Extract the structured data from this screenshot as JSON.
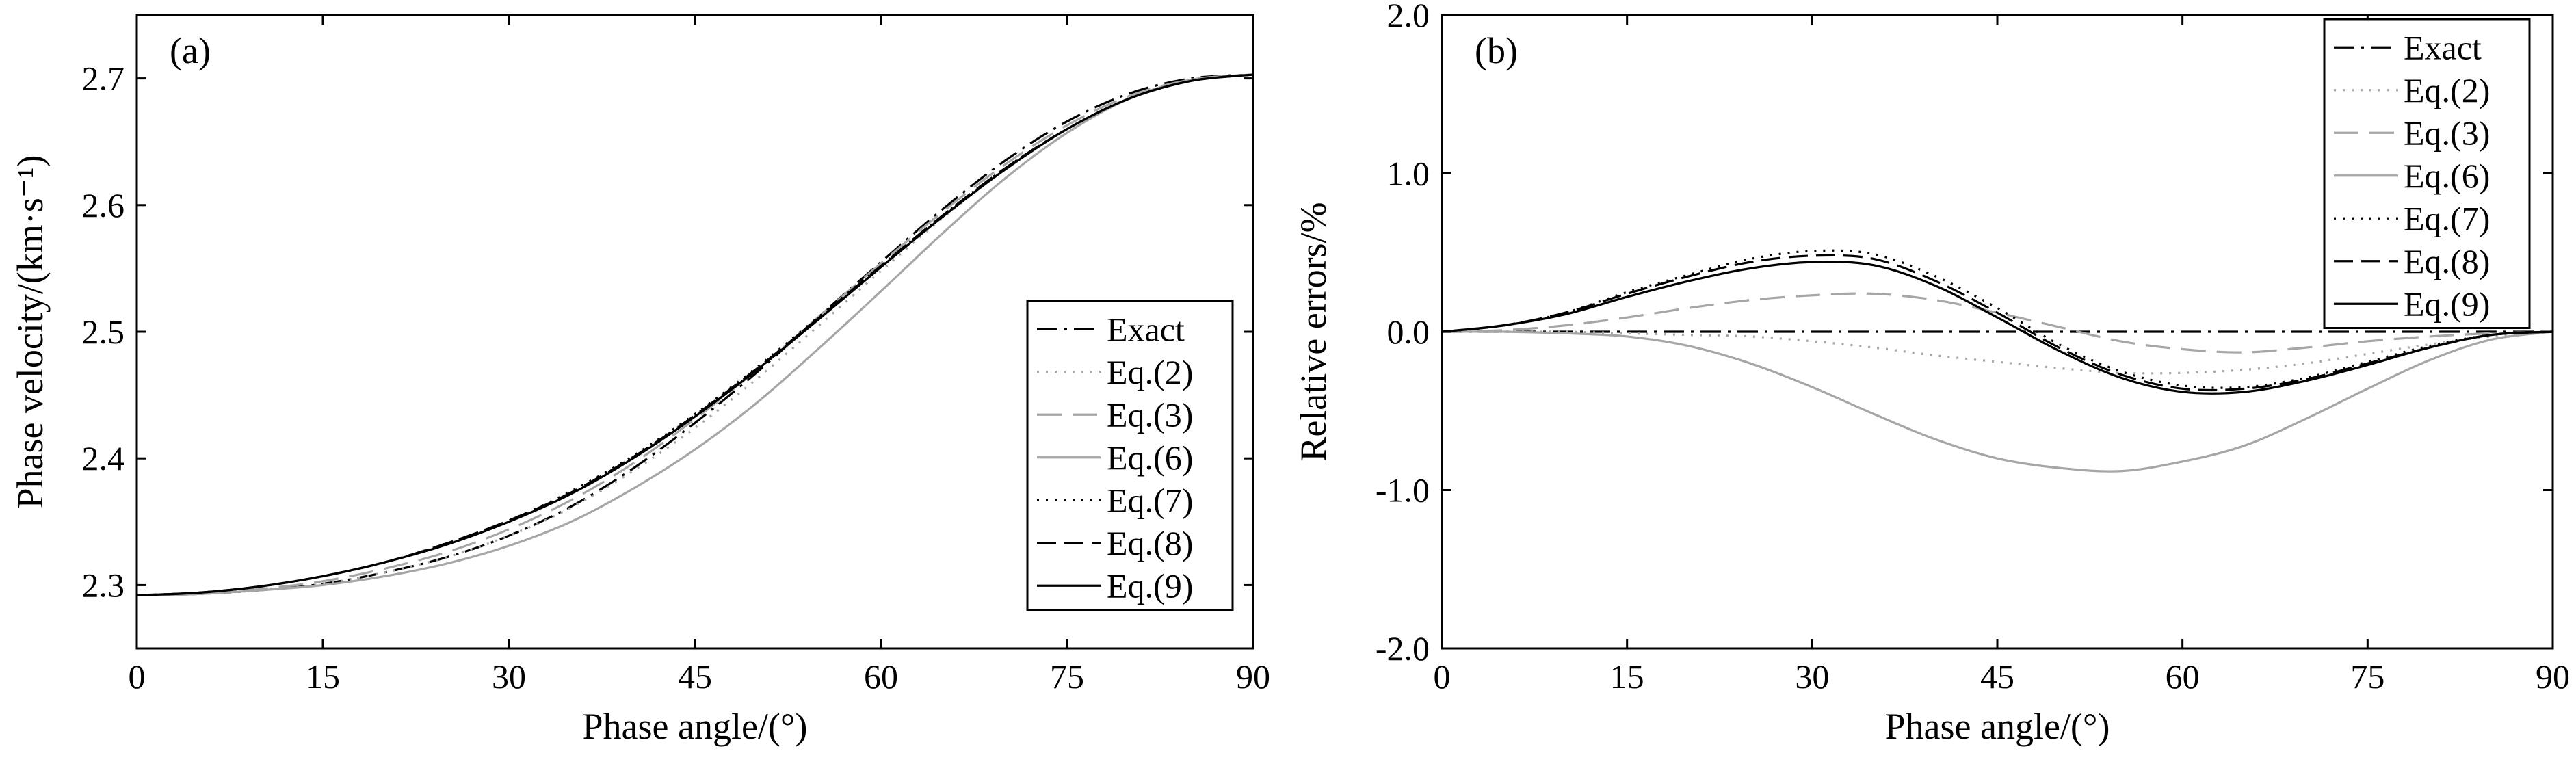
{
  "chart_data": [
    {
      "id": "a",
      "type": "line",
      "panel_label": "(a)",
      "xlabel": "Phase angle/(°)",
      "ylabel": "Phase velocity/(km·s⁻¹)",
      "xlim": [
        0,
        90
      ],
      "ylim": [
        2.25,
        2.75
      ],
      "xticks": [
        0,
        15,
        30,
        45,
        60,
        75,
        90
      ],
      "xtick_labels": [
        "0",
        "15",
        "30",
        "45",
        "60",
        "75",
        "90"
      ],
      "yticks": [
        2.3,
        2.4,
        2.5,
        2.6,
        2.7
      ],
      "ytick_labels": [
        "2.3",
        "2.4",
        "2.5",
        "2.6",
        "2.7"
      ],
      "legend_position": "bottom-right",
      "x": [
        0,
        5,
        10,
        15,
        20,
        25,
        30,
        35,
        40,
        45,
        50,
        55,
        60,
        65,
        70,
        75,
        80,
        85,
        90
      ],
      "series": [
        {
          "name": "Exact",
          "color": "#000000",
          "style": "dashdot",
          "values": [
            2.292,
            2.293,
            2.296,
            2.301,
            2.31,
            2.322,
            2.339,
            2.362,
            2.392,
            2.428,
            2.468,
            2.512,
            2.555,
            2.597,
            2.635,
            2.666,
            2.688,
            2.7,
            2.703
          ]
        },
        {
          "name": "Eq.(2)",
          "color": "#a6a6a6",
          "style": "dotted",
          "values": [
            2.292,
            2.293,
            2.296,
            2.301,
            2.31,
            2.322,
            2.339,
            2.361,
            2.39,
            2.424,
            2.463,
            2.505,
            2.548,
            2.59,
            2.628,
            2.66,
            2.684,
            2.698,
            2.703
          ]
        },
        {
          "name": "Eq.(3)",
          "color": "#a6a6a6",
          "style": "longdash",
          "values": [
            2.292,
            2.293,
            2.297,
            2.303,
            2.313,
            2.326,
            2.344,
            2.367,
            2.396,
            2.431,
            2.47,
            2.512,
            2.554,
            2.595,
            2.632,
            2.663,
            2.686,
            2.699,
            2.703
          ]
        },
        {
          "name": "Eq.(6)",
          "color": "#a6a6a6",
          "style": "solid",
          "values": [
            2.292,
            2.293,
            2.296,
            2.3,
            2.307,
            2.317,
            2.331,
            2.35,
            2.376,
            2.407,
            2.444,
            2.487,
            2.532,
            2.578,
            2.621,
            2.657,
            2.684,
            2.699,
            2.703
          ]
        },
        {
          "name": "Eq.(7)",
          "color": "#000000",
          "style": "dotted",
          "values": [
            2.292,
            2.294,
            2.299,
            2.307,
            2.318,
            2.333,
            2.351,
            2.374,
            2.402,
            2.435,
            2.472,
            2.512,
            2.552,
            2.592,
            2.629,
            2.66,
            2.684,
            2.698,
            2.703
          ]
        },
        {
          "name": "Eq.(8)",
          "color": "#000000",
          "style": "dashed",
          "values": [
            2.292,
            2.294,
            2.299,
            2.307,
            2.318,
            2.333,
            2.351,
            2.373,
            2.401,
            2.434,
            2.471,
            2.511,
            2.552,
            2.592,
            2.629,
            2.66,
            2.684,
            2.698,
            2.703
          ]
        },
        {
          "name": "Eq.(9)",
          "color": "#000000",
          "style": "solid",
          "values": [
            2.292,
            2.294,
            2.299,
            2.307,
            2.318,
            2.332,
            2.35,
            2.372,
            2.4,
            2.433,
            2.47,
            2.51,
            2.551,
            2.591,
            2.628,
            2.66,
            2.684,
            2.698,
            2.703
          ]
        }
      ]
    },
    {
      "id": "b",
      "type": "line",
      "panel_label": "(b)",
      "xlabel": "Phase angle/(°)",
      "ylabel": "Relative errors/%",
      "xlim": [
        0,
        90
      ],
      "ylim": [
        -2.0,
        2.0
      ],
      "xticks": [
        0,
        15,
        30,
        45,
        60,
        75,
        90
      ],
      "xtick_labels": [
        "0",
        "15",
        "30",
        "45",
        "60",
        "75",
        "90"
      ],
      "yticks": [
        -2.0,
        -1.0,
        0.0,
        1.0,
        2.0
      ],
      "ytick_labels": [
        "-2.0",
        "-1.0",
        "0.0",
        "1.0",
        "2.0"
      ],
      "legend_position": "top-right",
      "x": [
        0,
        5,
        10,
        15,
        20,
        25,
        30,
        35,
        40,
        45,
        50,
        55,
        60,
        65,
        70,
        75,
        80,
        85,
        90
      ],
      "series": [
        {
          "name": "Exact",
          "color": "#000000",
          "style": "dashdot",
          "values": [
            0,
            0,
            0,
            0,
            0,
            0,
            0,
            0,
            0,
            0,
            0,
            0,
            0,
            0,
            0,
            0,
            0,
            0,
            0
          ]
        },
        {
          "name": "Eq.(2)",
          "color": "#a6a6a6",
          "style": "dotted",
          "values": [
            0,
            0,
            0,
            -0.01,
            -0.02,
            -0.03,
            -0.06,
            -0.1,
            -0.15,
            -0.19,
            -0.23,
            -0.26,
            -0.26,
            -0.24,
            -0.2,
            -0.14,
            -0.08,
            -0.03,
            0
          ]
        },
        {
          "name": "Eq.(3)",
          "color": "#a6a6a6",
          "style": "longdash",
          "values": [
            0,
            0.01,
            0.04,
            0.09,
            0.15,
            0.2,
            0.23,
            0.24,
            0.2,
            0.12,
            0.03,
            -0.06,
            -0.11,
            -0.13,
            -0.1,
            -0.06,
            -0.03,
            -0.01,
            0
          ]
        },
        {
          "name": "Eq.(6)",
          "color": "#a6a6a6",
          "style": "solid",
          "values": [
            0,
            0,
            -0.01,
            -0.03,
            -0.09,
            -0.2,
            -0.35,
            -0.52,
            -0.68,
            -0.8,
            -0.86,
            -0.88,
            -0.82,
            -0.72,
            -0.55,
            -0.36,
            -0.18,
            -0.05,
            0
          ]
        },
        {
          "name": "Eq.(7)",
          "color": "#000000",
          "style": "dotted",
          "values": [
            0,
            0.04,
            0.12,
            0.25,
            0.36,
            0.46,
            0.51,
            0.49,
            0.35,
            0.15,
            -0.08,
            -0.25,
            -0.34,
            -0.35,
            -0.29,
            -0.19,
            -0.09,
            -0.02,
            0
          ]
        },
        {
          "name": "Eq.(8)",
          "color": "#000000",
          "style": "dashed",
          "values": [
            0,
            0.04,
            0.12,
            0.24,
            0.35,
            0.44,
            0.48,
            0.46,
            0.32,
            0.12,
            -0.1,
            -0.27,
            -0.36,
            -0.36,
            -0.3,
            -0.2,
            -0.1,
            -0.02,
            0
          ]
        },
        {
          "name": "Eq.(9)",
          "color": "#000000",
          "style": "solid",
          "values": [
            0,
            0.04,
            0.11,
            0.22,
            0.32,
            0.4,
            0.44,
            0.42,
            0.29,
            0.09,
            -0.12,
            -0.29,
            -0.38,
            -0.38,
            -0.31,
            -0.21,
            -0.1,
            -0.02,
            0
          ]
        }
      ]
    }
  ]
}
